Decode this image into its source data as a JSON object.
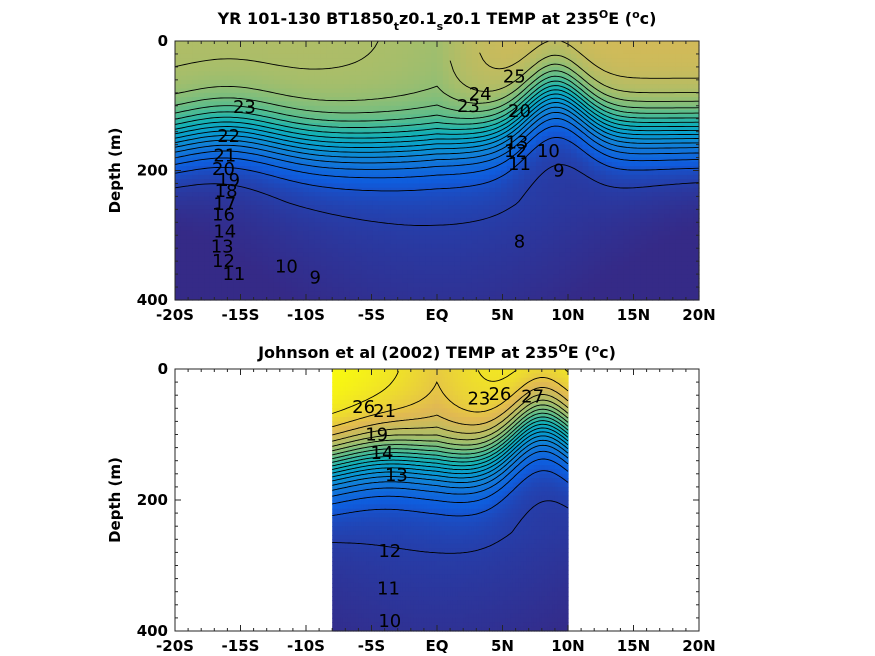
{
  "chart_data": [
    {
      "type": "heatmap",
      "subtype": "filled contour section",
      "title_parts": [
        "YR 101-130 BT1850",
        "t",
        "z0.1",
        "s",
        "z0.1 TEMP at 235",
        "O",
        "E (",
        "o",
        "c)"
      ],
      "ylabel": "Depth (m)",
      "xlim_deg": [
        -20,
        20
      ],
      "ylim": [
        400,
        0
      ],
      "y_reversed": true,
      "x_ticks": [
        "-20S",
        "-15S",
        "-10S",
        "-5S",
        "EQ",
        "5N",
        "10N",
        "15N",
        "20N"
      ],
      "y_ticks": [
        "0",
        "200",
        "400"
      ],
      "colormap": "parula",
      "colors": {
        "warm": "#f9d23c",
        "mid": "#7ccf5a",
        "teal": "#29aeb0",
        "cool": "#3f58e0",
        "deep": "#3a2fb0"
      },
      "contour_labels": [
        {
          "text": "25",
          "lat": 5.9,
          "depth": 55
        },
        {
          "text": "24",
          "lat": 3.3,
          "depth": 82
        },
        {
          "text": "23",
          "lat": 2.4,
          "depth": 100
        },
        {
          "text": "23",
          "lat": -14.7,
          "depth": 102
        },
        {
          "text": "22",
          "lat": -15.9,
          "depth": 147
        },
        {
          "text": "21",
          "lat": -16.2,
          "depth": 177
        },
        {
          "text": "20",
          "lat": -16.3,
          "depth": 198
        },
        {
          "text": "19",
          "lat": -15.9,
          "depth": 215
        },
        {
          "text": "18",
          "lat": -16.1,
          "depth": 232
        },
        {
          "text": "17",
          "lat": -16.2,
          "depth": 252
        },
        {
          "text": "16",
          "lat": -16.3,
          "depth": 268
        },
        {
          "text": "14",
          "lat": -16.2,
          "depth": 294
        },
        {
          "text": "13",
          "lat": -16.4,
          "depth": 317
        },
        {
          "text": "12",
          "lat": -16.3,
          "depth": 340
        },
        {
          "text": "11",
          "lat": -15.5,
          "depth": 360
        },
        {
          "text": "10",
          "lat": -11.5,
          "depth": 348
        },
        {
          "text": "9",
          "lat": -9.3,
          "depth": 365
        },
        {
          "text": "8",
          "lat": 6.3,
          "depth": 310
        },
        {
          "text": "9",
          "lat": 9.3,
          "depth": 200
        },
        {
          "text": "10",
          "lat": 8.5,
          "depth": 170
        },
        {
          "text": "11",
          "lat": 6.3,
          "depth": 190
        },
        {
          "text": "12",
          "lat": 6.0,
          "depth": 170
        },
        {
          "text": "13",
          "lat": 6.1,
          "depth": 157
        },
        {
          "text": "20",
          "lat": 6.3,
          "depth": 108
        }
      ],
      "field": {
        "sst_north": 24.9,
        "sst_south": 23.3,
        "sst_equator": 22.6,
        "north_dome_lat": 9,
        "south_dome_lat": -16
      }
    },
    {
      "type": "heatmap",
      "subtype": "filled contour section",
      "title_parts": [
        "Johnson et al (2002) TEMP at 235",
        "O",
        "E (",
        "o",
        "c)"
      ],
      "ylabel": "Depth (m)",
      "xlim_deg": [
        -20,
        20
      ],
      "data_lat_range": [
        -8,
        10
      ],
      "ylim": [
        400,
        0
      ],
      "y_reversed": true,
      "x_ticks": [
        "-20S",
        "-15S",
        "-10S",
        "-5S",
        "EQ",
        "5N",
        "10N",
        "15N",
        "20N"
      ],
      "y_ticks": [
        "0",
        "200",
        "400"
      ],
      "colormap": "parula",
      "contour_labels": [
        {
          "text": "26",
          "lat": -5.6,
          "depth": 58
        },
        {
          "text": "21",
          "lat": -4.0,
          "depth": 64
        },
        {
          "text": "19",
          "lat": -4.6,
          "depth": 100
        },
        {
          "text": "14",
          "lat": -4.2,
          "depth": 128
        },
        {
          "text": "13",
          "lat": -3.1,
          "depth": 162
        },
        {
          "text": "23",
          "lat": 3.2,
          "depth": 45
        },
        {
          "text": "26",
          "lat": 4.8,
          "depth": 38
        },
        {
          "text": "27",
          "lat": 7.3,
          "depth": 42
        },
        {
          "text": "12",
          "lat": -3.6,
          "depth": 278
        },
        {
          "text": "11",
          "lat": -3.7,
          "depth": 335
        },
        {
          "text": "10",
          "lat": -3.6,
          "depth": 385
        }
      ],
      "field": {
        "sst_north": 27.6,
        "sst_south": 28.3,
        "sst_equator": 26.2,
        "north_dome_lat": 8,
        "south_dome_lat": -4
      }
    }
  ]
}
